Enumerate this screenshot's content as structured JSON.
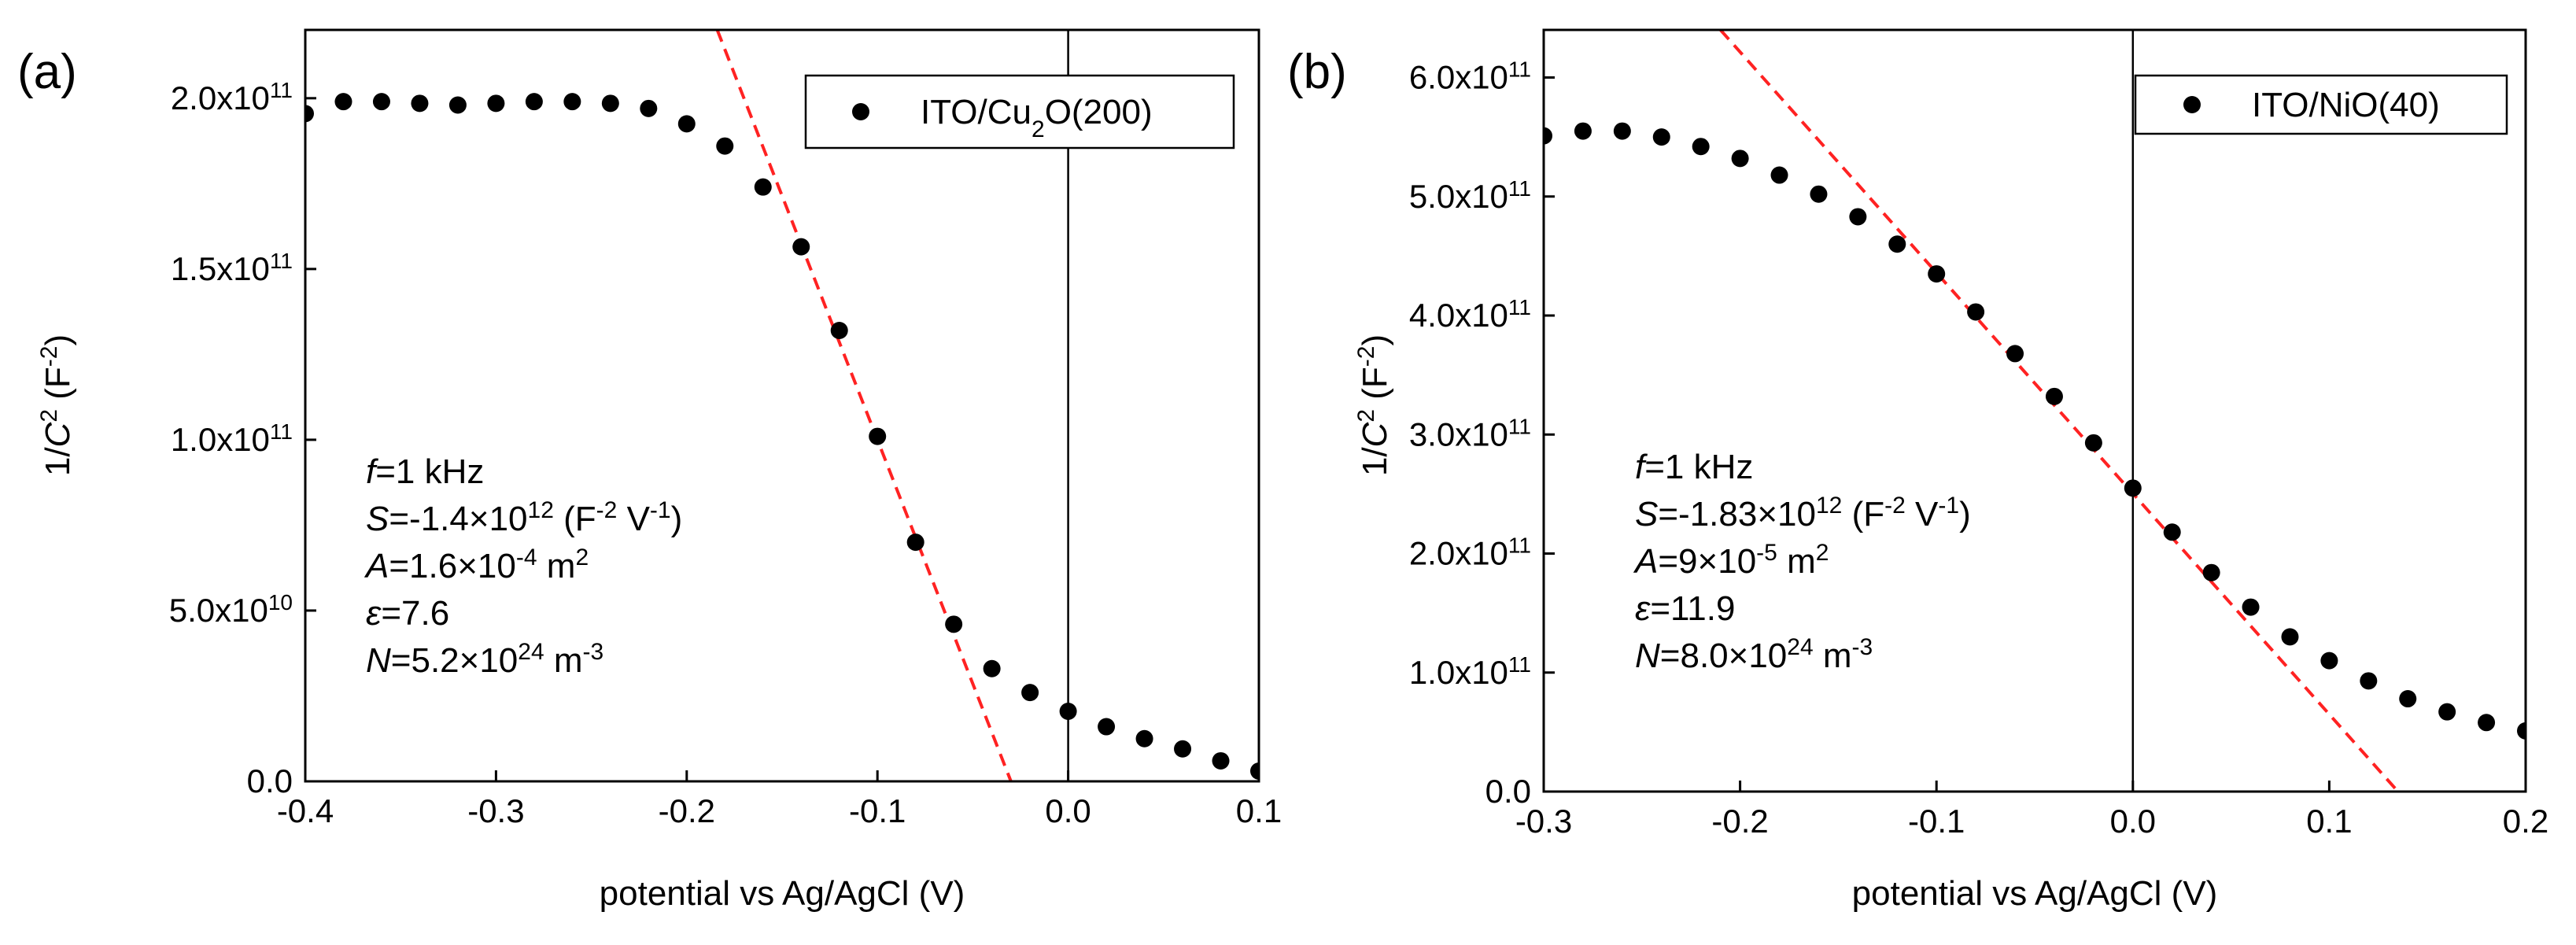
{
  "chart_data": [
    {
      "type": "scatter",
      "panel_label": "(a)",
      "xlabel": "potential vs Ag/AgCl (V)",
      "ylabel": {
        "prefix": "1/",
        "var": "C",
        "sup": "2",
        "mid": " (F",
        "unit_sup": "-2",
        "suffix": ")"
      },
      "xlim": [
        -0.4,
        0.1
      ],
      "ylim": [
        0,
        220000000000.0
      ],
      "xticks": [
        -0.4,
        -0.3,
        -0.2,
        -0.1,
        0.0,
        0.1
      ],
      "xtick_labels": [
        "-0.4",
        "-0.3",
        "-0.2",
        "-0.1",
        "0.0",
        "0.1"
      ],
      "yticks": [
        0,
        50000000000.0,
        100000000000.0,
        150000000000.0,
        200000000000.0
      ],
      "ytick_labels": [
        {
          "base": "0.0",
          "sup": ""
        },
        {
          "base": "5.0x10",
          "sup": "10"
        },
        {
          "base": "1.0x10",
          "sup": "11"
        },
        {
          "base": "1.5x10",
          "sup": "11"
        },
        {
          "base": "2.0x10",
          "sup": "11"
        }
      ],
      "vline_x": 0.0,
      "legend": {
        "position": "top-right",
        "parts": [
          "ITO/Cu",
          "2",
          "O(200)"
        ]
      },
      "series": [
        {
          "name": "ITO/Cu2O(200)",
          "marker": "circle",
          "color": "#000000",
          "x": [
            -0.4,
            -0.38,
            -0.36,
            -0.34,
            -0.32,
            -0.3,
            -0.28,
            -0.26,
            -0.24,
            -0.22,
            -0.2,
            -0.18,
            -0.16,
            -0.14,
            -0.12,
            -0.1,
            -0.08,
            -0.06,
            -0.04,
            -0.02,
            0.0,
            0.02,
            0.04,
            0.06,
            0.08,
            0.1
          ],
          "y": [
            195500000000.0,
            199000000000.0,
            199000000000.0,
            198500000000.0,
            198000000000.0,
            198500000000.0,
            199000000000.0,
            199000000000.0,
            198500000000.0,
            197000000000.0,
            192500000000.0,
            186000000000.0,
            174000000000.0,
            156500000000.0,
            132000000000.0,
            101000000000.0,
            70000000000.0,
            46000000000.0,
            33000000000.0,
            26000000000.0,
            20500000000.0,
            16000000000.0,
            12500000000.0,
            9500000000.0,
            6000000000.0,
            3000000000.0
          ]
        }
      ],
      "fit_line": {
        "color": "#ff2222",
        "style": "dashed",
        "x": [
          -0.184,
          -0.03
        ],
        "y": [
          220000000000.0,
          0
        ]
      },
      "annotations": [
        [
          {
            "t": "f",
            "i": true
          },
          {
            "t": "=1 kHz"
          }
        ],
        [
          {
            "t": "S",
            "i": true
          },
          {
            "t": "=-1.4×10"
          },
          {
            "t": "12",
            "s": true
          },
          {
            "t": " (F"
          },
          {
            "t": "-2",
            "s": true
          },
          {
            "t": " V"
          },
          {
            "t": "-1",
            "s": true
          },
          {
            "t": ")"
          }
        ],
        [
          {
            "t": "A",
            "i": true
          },
          {
            "t": "=1.6×10"
          },
          {
            "t": "-4",
            "s": true
          },
          {
            "t": " m"
          },
          {
            "t": "2",
            "s": true
          }
        ],
        [
          {
            "t": "ε",
            "i": true
          },
          {
            "t": "=7.6"
          }
        ],
        [
          {
            "t": "N",
            "i": true
          },
          {
            "t": "=5.2×10"
          },
          {
            "t": "24",
            "s": true
          },
          {
            "t": " m"
          },
          {
            "t": "-3",
            "s": true
          }
        ]
      ]
    },
    {
      "type": "scatter",
      "panel_label": "(b)",
      "xlabel": "potential vs Ag/AgCl (V)",
      "ylabel": {
        "prefix": "1/",
        "var": "C",
        "sup": "2",
        "mid": " (F",
        "unit_sup": "-2",
        "suffix": ")"
      },
      "xlim": [
        -0.3,
        0.2
      ],
      "ylim": [
        0,
        640000000000.0
      ],
      "xticks": [
        -0.3,
        -0.2,
        -0.1,
        0.0,
        0.1,
        0.2
      ],
      "xtick_labels": [
        "-0.3",
        "-0.2",
        "-0.1",
        "0.0",
        "0.1",
        "0.2"
      ],
      "yticks": [
        0,
        100000000000.0,
        200000000000.0,
        300000000000.0,
        400000000000.0,
        500000000000.0,
        600000000000.0
      ],
      "ytick_labels": [
        {
          "base": "0.0",
          "sup": ""
        },
        {
          "base": "1.0x10",
          "sup": "11"
        },
        {
          "base": "2.0x10",
          "sup": "11"
        },
        {
          "base": "3.0x10",
          "sup": "11"
        },
        {
          "base": "4.0x10",
          "sup": "11"
        },
        {
          "base": "5.0x10",
          "sup": "11"
        },
        {
          "base": "6.0x10",
          "sup": "11"
        }
      ],
      "vline_x": 0.0,
      "legend": {
        "position": "top-right",
        "parts": [
          "ITO/NiO(40)",
          "",
          ""
        ]
      },
      "series": [
        {
          "name": "ITO/NiO(40)",
          "marker": "circle",
          "color": "#000000",
          "x": [
            -0.3,
            -0.28,
            -0.26,
            -0.24,
            -0.22,
            -0.2,
            -0.18,
            -0.16,
            -0.14,
            -0.12,
            -0.1,
            -0.08,
            -0.06,
            -0.04,
            -0.02,
            0.0,
            0.02,
            0.04,
            0.06,
            0.08,
            0.1,
            0.12,
            0.14,
            0.16,
            0.18,
            0.2
          ],
          "y": [
            551000000000.0,
            555000000000.0,
            555000000000.0,
            550000000000.0,
            542000000000.0,
            532000000000.0,
            518000000000.0,
            502000000000.0,
            483000000000.0,
            460000000000.0,
            435000000000.0,
            403000000000.0,
            368000000000.0,
            332000000000.0,
            293000000000.0,
            255000000000.0,
            218000000000.0,
            184000000000.0,
            155000000000.0,
            130000000000.0,
            110000000000.0,
            93000000000.0,
            78000000000.0,
            67000000000.0,
            58000000000.0,
            51000000000.0
          ]
        }
      ],
      "fit_line": {
        "color": "#ff2222",
        "style": "dashed",
        "x": [
          -0.21,
          0.135
        ],
        "y": [
          640000000000.0,
          0
        ]
      },
      "annotations": [
        [
          {
            "t": "f",
            "i": true
          },
          {
            "t": "=1 kHz"
          }
        ],
        [
          {
            "t": "S",
            "i": true
          },
          {
            "t": "=-1.83×10"
          },
          {
            "t": "12",
            "s": true
          },
          {
            "t": " (F"
          },
          {
            "t": "-2",
            "s": true
          },
          {
            "t": " V"
          },
          {
            "t": "-1",
            "s": true
          },
          {
            "t": ")"
          }
        ],
        [
          {
            "t": "A",
            "i": true
          },
          {
            "t": "=9×10"
          },
          {
            "t": "-5",
            "s": true
          },
          {
            "t": " m"
          },
          {
            "t": "2",
            "s": true
          }
        ],
        [
          {
            "t": "ε",
            "i": true
          },
          {
            "t": "=11.9"
          }
        ],
        [
          {
            "t": "N",
            "i": true
          },
          {
            "t": "=8.0×10"
          },
          {
            "t": "24",
            "s": true
          },
          {
            "t": " m"
          },
          {
            "t": "-3",
            "s": true
          }
        ]
      ]
    }
  ]
}
